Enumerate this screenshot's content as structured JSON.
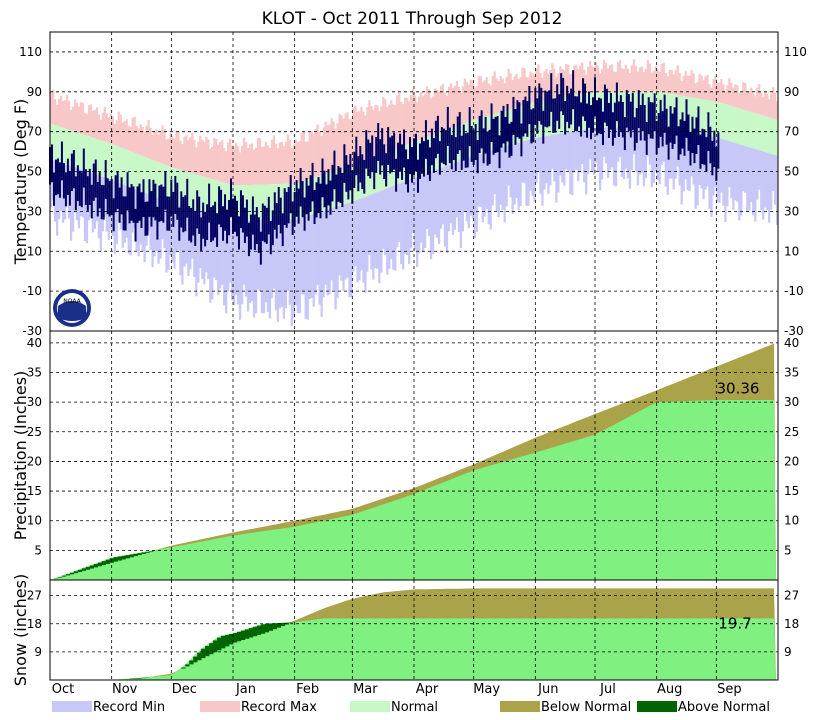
{
  "title": "KLOT - Oct 2011 Through Sep 2012",
  "months": [
    "Oct",
    "Nov",
    "Dec",
    "Jan",
    "Feb",
    "Mar",
    "Apr",
    "May",
    "Jun",
    "Jul",
    "Aug",
    "Sep"
  ],
  "legend": [
    {
      "label": "Record Min",
      "color": "#c8c8f8"
    },
    {
      "label": "Record Max",
      "color": "#f8c8c8"
    },
    {
      "label": "Normal",
      "color": "#c8f8c8"
    },
    {
      "label": "Below Normal",
      "color": "#aaa34a"
    },
    {
      "label": "Above Normal",
      "color": "#006400"
    }
  ],
  "colors": {
    "observed_temp": "#000060",
    "observed_fill": "#80f080",
    "deficit": "#aaa34a",
    "surplus": "#006400"
  },
  "logo": "noaa-logo",
  "chart_data": [
    {
      "type": "line",
      "ylabel": "Temperature (Deg F)",
      "ylim": [
        -30,
        120
      ],
      "yticks": [
        -30,
        -10,
        10,
        30,
        50,
        70,
        90,
        110
      ],
      "grid": true,
      "series": [
        {
          "name": "Record Max",
          "x": [
            0,
            30,
            61,
            92,
            123,
            152,
            183,
            213,
            244,
            274,
            305,
            335,
            365
          ],
          "values": [
            88,
            78,
            68,
            63,
            65,
            80,
            88,
            95,
            100,
            103,
            102,
            95,
            88
          ]
        },
        {
          "name": "Normal",
          "x": [
            0,
            30,
            61,
            92,
            123,
            152,
            183,
            213,
            244,
            274,
            305,
            335,
            365
          ],
          "values": [
            66,
            56,
            44,
            35,
            36,
            45,
            57,
            68,
            77,
            82,
            82,
            77,
            68
          ]
        },
        {
          "name": "Record Min",
          "x": [
            0,
            30,
            61,
            92,
            123,
            152,
            183,
            213,
            244,
            274,
            305,
            335,
            365
          ],
          "values": [
            28,
            18,
            5,
            -15,
            -20,
            -5,
            10,
            25,
            40,
            50,
            48,
            35,
            30
          ]
        },
        {
          "name": "Observed",
          "x": [
            0,
            15,
            30,
            45,
            61,
            75,
            92,
            105,
            123,
            137,
            152,
            165,
            183,
            197,
            213,
            228,
            244,
            258,
            274,
            289,
            305,
            320,
            336
          ],
          "values": [
            50,
            45,
            38,
            32,
            35,
            25,
            30,
            20,
            35,
            40,
            50,
            60,
            55,
            65,
            65,
            70,
            80,
            85,
            80,
            78,
            75,
            70,
            60
          ]
        }
      ]
    },
    {
      "type": "area",
      "ylabel": "Precipitation (Inches)",
      "ylim": [
        0,
        42
      ],
      "yticks": [
        5,
        10,
        15,
        20,
        25,
        30,
        35,
        40
      ],
      "grid": true,
      "annotation": "30.36",
      "series": [
        {
          "name": "Normal",
          "x": [
            0,
            31,
            61,
            92,
            123,
            152,
            183,
            213,
            244,
            274,
            305,
            335,
            365
          ],
          "values": [
            0,
            3.0,
            5.8,
            8.0,
            10.0,
            12.0,
            15.5,
            19.5,
            24.0,
            28.0,
            32.0,
            36.0,
            40.0
          ]
        },
        {
          "name": "Observed",
          "x": [
            0,
            31,
            61,
            92,
            123,
            152,
            183,
            213,
            244,
            274,
            305,
            335,
            365
          ],
          "values": [
            0,
            3.8,
            5.5,
            7.5,
            9.0,
            11.0,
            14.5,
            18.5,
            21.5,
            24.5,
            30.0,
            30.36,
            30.36
          ]
        }
      ]
    },
    {
      "type": "area",
      "ylabel": "Snow (inches)",
      "ylim": [
        0,
        32
      ],
      "yticks": [
        9,
        18,
        27
      ],
      "grid": true,
      "annotation": "19.7",
      "series": [
        {
          "name": "Normal",
          "x": [
            0,
            31,
            45,
            61,
            76,
            92,
            107,
            123,
            138,
            152,
            167,
            183,
            213,
            244,
            274,
            305,
            335,
            365
          ],
          "values": [
            0,
            0,
            0.5,
            2,
            7,
            12,
            15,
            19,
            23,
            26,
            28,
            29,
            29.3,
            29.3,
            29.3,
            29.3,
            29.3,
            29.3
          ]
        },
        {
          "name": "Observed",
          "x": [
            0,
            31,
            45,
            61,
            68,
            76,
            85,
            92,
            107,
            123,
            138,
            152,
            183,
            213,
            244,
            274,
            305,
            335,
            365
          ],
          "values": [
            0,
            0,
            0.7,
            1.5,
            5,
            10,
            14,
            15,
            18,
            18.5,
            19.7,
            19.7,
            19.7,
            19.7,
            19.7,
            19.7,
            19.7,
            19.7,
            19.7
          ]
        }
      ]
    }
  ]
}
